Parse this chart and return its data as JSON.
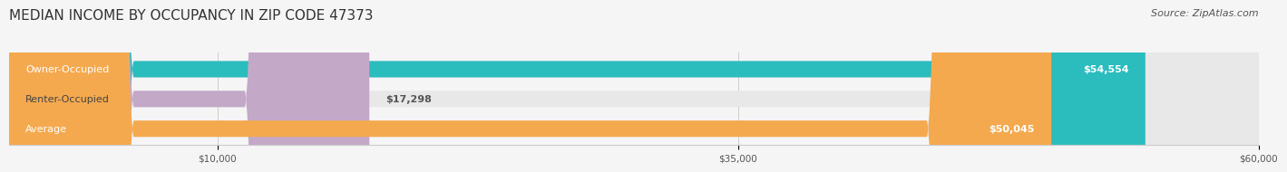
{
  "title": "MEDIAN INCOME BY OCCUPANCY IN ZIP CODE 47373",
  "source": "Source: ZipAtlas.com",
  "categories": [
    "Owner-Occupied",
    "Renter-Occupied",
    "Average"
  ],
  "values": [
    54554,
    17298,
    50045
  ],
  "bar_colors": [
    "#2bbcbe",
    "#c4a8c8",
    "#f5a94e"
  ],
  "bar_bg_color": "#e8e8e8",
  "value_labels": [
    "$54,554",
    "$17,298",
    "$50,045"
  ],
  "xlim": [
    0,
    60000
  ],
  "xticks": [
    10000,
    35000,
    60000
  ],
  "xtick_labels": [
    "$10,000",
    "$35,000",
    "$60,000"
  ],
  "title_fontsize": 11,
  "source_fontsize": 8,
  "bar_label_fontsize": 8,
  "cat_label_fontsize": 8,
  "background_color": "#f5f5f5",
  "bar_height": 0.55
}
